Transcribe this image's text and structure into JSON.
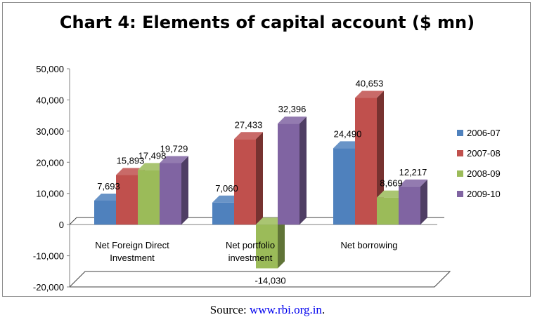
{
  "chart_data": {
    "type": "bar",
    "title": "Chart 4: Elements of capital account ($ mn)",
    "categories": [
      [
        "Net Foreign Direct",
        "Investment"
      ],
      [
        "Net portfolio",
        "investment"
      ],
      [
        "Net borrowing"
      ]
    ],
    "series": [
      {
        "name": "2006-07",
        "color": "#4f81bd",
        "values": [
          7693,
          7060,
          24490
        ],
        "labels": [
          "7,693",
          "7,060",
          "24,490"
        ]
      },
      {
        "name": "2007-08",
        "color": "#c0504d",
        "values": [
          15893,
          27433,
          40653
        ],
        "labels": [
          "15,893",
          "27,433",
          "40,653"
        ]
      },
      {
        "name": "2008-09",
        "color": "#9bbb59",
        "values": [
          17498,
          -14030,
          8669
        ],
        "labels": [
          "17,498",
          "-14,030",
          "8,669"
        ]
      },
      {
        "name": "2009-10",
        "color": "#8064a2",
        "values": [
          19729,
          32396,
          12217
        ],
        "labels": [
          "19,729",
          "32,396",
          "12,217"
        ]
      }
    ],
    "yticks": [
      "50,000",
      "40,000",
      "30,000",
      "20,000",
      "10,000",
      "0",
      "-10,000",
      "-20,000"
    ],
    "ylim": [
      -20000,
      50000
    ],
    "legend_position": "right",
    "three_d": true
  },
  "source": {
    "prefix": "Source: ",
    "link_text": "www.rbi.org.in",
    "suffix": "."
  }
}
